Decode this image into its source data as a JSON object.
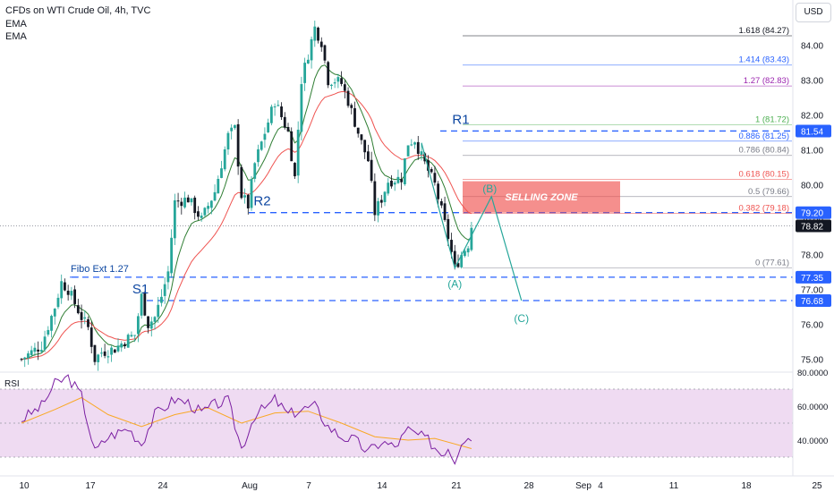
{
  "header": {
    "title": "CFDs on WTI Crude Oil, 4h, TVC",
    "indicators": [
      "EMA",
      "EMA"
    ],
    "currency_button": "USD"
  },
  "colors": {
    "candle_up": "#26a69a",
    "candle_down": "#131722",
    "ema_fast": "#2e7d32",
    "ema_slow": "#ef5350",
    "level_line": "#2962ff",
    "selling_zone": "#ef5350",
    "pattern_line": "#26a69a",
    "rsi_line": "#7b1fa2",
    "rsi_ma": "#f9a825",
    "rsi_band": "#e1bee7",
    "price_badge": "#2962ff",
    "last_price_badge": "#131722"
  },
  "chart_data": [
    {
      "type": "candlestick",
      "title": "CFDs on WTI Crude Oil, 4h, TVC",
      "currency": "USD",
      "x_tick_labels": [
        "10",
        "17",
        "24",
        "Aug",
        "7",
        "14",
        "21",
        "28",
        "Sep",
        "4",
        "11",
        "18",
        "25"
      ],
      "y_tick_labels": [
        "84.00",
        "83.00",
        "82.00",
        "81.00",
        "80.00",
        "79.00",
        "78.00",
        "77.00",
        "76.00",
        "75.00"
      ],
      "ylim": [
        74.6,
        85.0
      ],
      "grid": false,
      "last_price": 78.82,
      "price_path": [
        [
          0,
          75.0
        ],
        [
          3,
          75.4
        ],
        [
          5,
          76.5
        ],
        [
          6,
          77.2
        ],
        [
          7,
          77.0
        ],
        [
          9,
          76.2
        ],
        [
          10,
          75.9
        ],
        [
          11,
          75.0
        ],
        [
          12,
          75.2
        ],
        [
          14,
          75.3
        ],
        [
          16,
          75.6
        ],
        [
          17,
          75.7
        ],
        [
          18,
          76.8
        ],
        [
          19,
          76.0
        ],
        [
          20,
          76.2
        ],
        [
          21,
          76.8
        ],
        [
          22,
          77.5
        ],
        [
          23,
          79.5
        ],
        [
          25,
          79.6
        ],
        [
          27,
          79.0
        ],
        [
          29,
          79.8
        ],
        [
          31,
          81.4
        ],
        [
          32,
          81.6
        ],
        [
          33,
          79.7
        ],
        [
          34,
          79.4
        ],
        [
          35,
          80.6
        ],
        [
          37,
          81.8
        ],
        [
          38,
          82.4
        ],
        [
          40,
          81.5
        ],
        [
          41,
          80.2
        ],
        [
          42,
          83.0
        ],
        [
          44,
          84.5
        ],
        [
          45,
          84.1
        ],
        [
          46,
          83.0
        ],
        [
          47,
          83.0
        ],
        [
          48,
          82.9
        ],
        [
          49,
          82.4
        ],
        [
          51,
          81.2
        ],
        [
          52,
          80.7
        ],
        [
          53,
          79.2
        ],
        [
          54,
          79.6
        ],
        [
          55,
          80.1
        ],
        [
          57,
          80.2
        ],
        [
          58,
          81.2
        ],
        [
          59,
          81.3
        ],
        [
          60,
          80.8
        ],
        [
          62,
          80.0
        ],
        [
          64,
          78.5
        ],
        [
          65,
          77.6
        ],
        [
          66,
          78.0
        ],
        [
          67,
          78.3
        ],
        [
          67.5,
          78.82
        ]
      ],
      "ema_fast_label": "EMA",
      "ema_slow_label": "EMA",
      "fib_levels": [
        {
          "ratio": "0",
          "price": 77.61,
          "label": "0 (77.61)"
        },
        {
          "ratio": "0.382",
          "price": 79.18,
          "label": "0.382 (79.18)"
        },
        {
          "ratio": "0.5",
          "price": 79.66,
          "label": "0.5 (79.66)"
        },
        {
          "ratio": "0.618",
          "price": 80.15,
          "label": "0.618 (80.15)"
        },
        {
          "ratio": "0.786",
          "price": 80.84,
          "label": "0.786 (80.84)"
        },
        {
          "ratio": "0.886",
          "price": 81.25,
          "label": "0.886 (81.25)"
        },
        {
          "ratio": "1",
          "price": 81.72,
          "label": "1 (81.72)"
        },
        {
          "ratio": "1.27",
          "price": 82.83,
          "label": "1.27 (82.83)"
        },
        {
          "ratio": "1.414",
          "price": 83.43,
          "label": "1.414 (83.43)"
        },
        {
          "ratio": "1.618",
          "price": 84.27,
          "label": "1.618 (84.27)"
        }
      ],
      "horizontal_levels": [
        {
          "label": "R1",
          "price": 81.54
        },
        {
          "label": "R2",
          "price": 79.2
        },
        {
          "label": "Fibo Ext 1.27",
          "price": 77.35
        },
        {
          "label": "S1",
          "price": 76.68
        }
      ],
      "price_badges": [
        "81.54",
        "79.20",
        "78.82",
        "77.35",
        "76.68"
      ],
      "selling_zone": {
        "label": "SELLING ZONE",
        "price_low": 79.2,
        "price_high": 80.1
      },
      "wave_labels": [
        "(A)",
        "(B)",
        "(C)"
      ],
      "wave_points": [
        {
          "label": "(A)",
          "x": 65,
          "price": 77.61
        },
        {
          "label": "(B)",
          "x": 70.5,
          "price": 79.66
        },
        {
          "label": "(C)",
          "x": 75,
          "price": 76.68
        }
      ]
    },
    {
      "type": "line",
      "title": "RSI",
      "y_tick_labels": [
        "80.0000",
        "60.0000",
        "40.0000"
      ],
      "ylim": [
        25,
        85
      ],
      "band": [
        30,
        70
      ],
      "rsi_path": [
        [
          0,
          52
        ],
        [
          3,
          60
        ],
        [
          5,
          73
        ],
        [
          7,
          77
        ],
        [
          9,
          66
        ],
        [
          11,
          33
        ],
        [
          13,
          42
        ],
        [
          16,
          47
        ],
        [
          18,
          38
        ],
        [
          20,
          55
        ],
        [
          23,
          64
        ],
        [
          25,
          62
        ],
        [
          27,
          56
        ],
        [
          29,
          61
        ],
        [
          31,
          63
        ],
        [
          33,
          35
        ],
        [
          35,
          55
        ],
        [
          37,
          60
        ],
        [
          38,
          64
        ],
        [
          40,
          55
        ],
        [
          42,
          58
        ],
        [
          44,
          60
        ],
        [
          46,
          48
        ],
        [
          48,
          42
        ],
        [
          50,
          40
        ],
        [
          52,
          33
        ],
        [
          54,
          39
        ],
        [
          56,
          36
        ],
        [
          58,
          46
        ],
        [
          59,
          44
        ],
        [
          61,
          40
        ],
        [
          63,
          32
        ],
        [
          64,
          36
        ],
        [
          65,
          28
        ],
        [
          66,
          40
        ],
        [
          67,
          43
        ],
        [
          67.5,
          40
        ]
      ],
      "rsi_ma_path": [
        [
          0,
          50
        ],
        [
          5,
          58
        ],
        [
          9,
          65
        ],
        [
          13,
          55
        ],
        [
          18,
          48
        ],
        [
          23,
          55
        ],
        [
          28,
          59
        ],
        [
          33,
          50
        ],
        [
          38,
          56
        ],
        [
          43,
          57
        ],
        [
          48,
          50
        ],
        [
          53,
          42
        ],
        [
          58,
          40
        ],
        [
          62,
          41
        ],
        [
          67.5,
          35
        ]
      ]
    }
  ]
}
